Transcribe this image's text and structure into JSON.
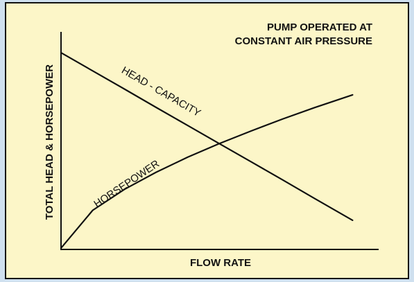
{
  "chart_data": {
    "type": "line",
    "annotation": [
      "PUMP OPERATED AT",
      "CONSTANT AIR PRESSURE"
    ],
    "x_label": "FLOW RATE",
    "y_label": "TOTAL HEAD & HORSEPOWER",
    "x": [
      0,
      10,
      20,
      30,
      40,
      50,
      60,
      70,
      80,
      92
    ],
    "xlim": [
      0,
      100
    ],
    "ylim": [
      0,
      100
    ],
    "series": [
      {
        "name": "HEAD - CAPACITY",
        "color": "#111111",
        "values": [
          91,
          82.6,
          74.2,
          65.7,
          57.3,
          48.9,
          40.5,
          32.1,
          23.6,
          13.5
        ]
      },
      {
        "name": "HORSEPOWER",
        "color": "#111111",
        "values": [
          0.6,
          18.1,
          27.8,
          35.7,
          42.7,
          49,
          54.8,
          60.4,
          65.6,
          71.5
        ]
      }
    ]
  }
}
